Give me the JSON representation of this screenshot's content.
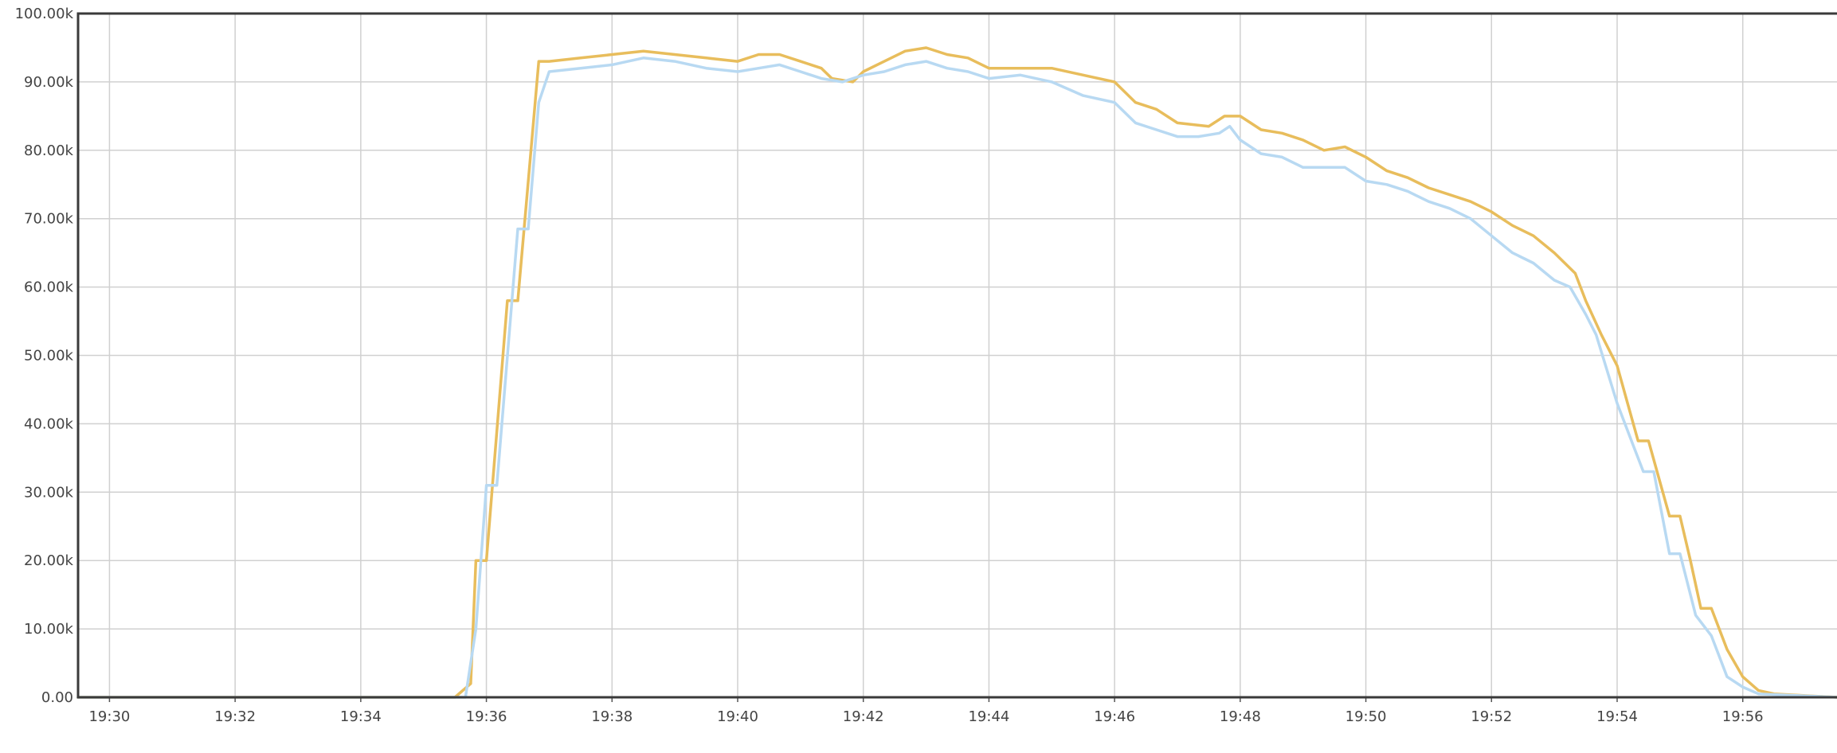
{
  "chart_data": {
    "type": "line",
    "title": "",
    "xlabel": "",
    "ylabel": "",
    "xlim": [
      "19:29:30",
      "19:57:30"
    ],
    "ylim": [
      0,
      100000
    ],
    "grid": true,
    "legend": "none",
    "x_ticks": [
      "19:30",
      "19:32",
      "19:34",
      "19:36",
      "19:38",
      "19:40",
      "19:42",
      "19:44",
      "19:46",
      "19:48",
      "19:50",
      "19:52",
      "19:54",
      "19:56"
    ],
    "y_ticks": [
      "0.00",
      "10.00k",
      "20.00k",
      "30.00k",
      "40.00k",
      "50.00k",
      "60.00k",
      "70.00k",
      "80.00k",
      "90.00k",
      "100.00k"
    ],
    "series": [
      {
        "color": "#e8bd5c",
        "points": [
          [
            "19:29:30",
            0
          ],
          [
            "19:35:30",
            0
          ],
          [
            "19:35:45",
            2000
          ],
          [
            "19:35:50",
            20000
          ],
          [
            "19:36:00",
            20000
          ],
          [
            "19:36:20",
            58000
          ],
          [
            "19:36:30",
            58000
          ],
          [
            "19:36:50",
            93000
          ],
          [
            "19:37:00",
            93000
          ],
          [
            "19:37:30",
            93500
          ],
          [
            "19:38:00",
            94000
          ],
          [
            "19:38:30",
            94500
          ],
          [
            "19:39:00",
            94000
          ],
          [
            "19:39:30",
            93500
          ],
          [
            "19:40:00",
            93000
          ],
          [
            "19:40:20",
            94000
          ],
          [
            "19:40:40",
            94000
          ],
          [
            "19:41:00",
            93000
          ],
          [
            "19:41:20",
            92000
          ],
          [
            "19:41:30",
            90500
          ],
          [
            "19:41:50",
            90000
          ],
          [
            "19:42:00",
            91500
          ],
          [
            "19:42:20",
            93000
          ],
          [
            "19:42:40",
            94500
          ],
          [
            "19:43:00",
            95000
          ],
          [
            "19:43:20",
            94000
          ],
          [
            "19:43:40",
            93500
          ],
          [
            "19:44:00",
            92000
          ],
          [
            "19:44:30",
            92000
          ],
          [
            "19:45:00",
            92000
          ],
          [
            "19:45:30",
            91000
          ],
          [
            "19:46:00",
            90000
          ],
          [
            "19:46:20",
            87000
          ],
          [
            "19:46:40",
            86000
          ],
          [
            "19:47:00",
            84000
          ],
          [
            "19:47:30",
            83500
          ],
          [
            "19:47:45",
            85000
          ],
          [
            "19:48:00",
            85000
          ],
          [
            "19:48:20",
            83000
          ],
          [
            "19:48:40",
            82500
          ],
          [
            "19:49:00",
            81500
          ],
          [
            "19:49:20",
            80000
          ],
          [
            "19:49:40",
            80500
          ],
          [
            "19:50:00",
            79000
          ],
          [
            "19:50:20",
            77000
          ],
          [
            "19:50:40",
            76000
          ],
          [
            "19:51:00",
            74500
          ],
          [
            "19:51:20",
            73500
          ],
          [
            "19:51:40",
            72500
          ],
          [
            "19:52:00",
            71000
          ],
          [
            "19:52:20",
            69000
          ],
          [
            "19:52:40",
            67500
          ],
          [
            "19:53:00",
            65000
          ],
          [
            "19:53:20",
            62000
          ],
          [
            "19:53:30",
            58000
          ],
          [
            "19:53:45",
            53000
          ],
          [
            "19:54:00",
            48500
          ],
          [
            "19:54:10",
            43000
          ],
          [
            "19:54:20",
            37500
          ],
          [
            "19:54:30",
            37500
          ],
          [
            "19:54:50",
            26500
          ],
          [
            "19:55:00",
            26500
          ],
          [
            "19:55:10",
            20000
          ],
          [
            "19:55:20",
            13000
          ],
          [
            "19:55:30",
            13000
          ],
          [
            "19:55:45",
            7000
          ],
          [
            "19:56:00",
            3000
          ],
          [
            "19:56:15",
            1000
          ],
          [
            "19:56:30",
            500
          ],
          [
            "19:57:30",
            0
          ]
        ]
      },
      {
        "color": "#b8d9f2",
        "points": [
          [
            "19:29:30",
            0
          ],
          [
            "19:35:40",
            0
          ],
          [
            "19:35:50",
            10000
          ],
          [
            "19:36:00",
            31000
          ],
          [
            "19:36:10",
            31000
          ],
          [
            "19:36:30",
            68500
          ],
          [
            "19:36:40",
            68500
          ],
          [
            "19:36:50",
            87000
          ],
          [
            "19:37:00",
            91500
          ],
          [
            "19:37:30",
            92000
          ],
          [
            "19:38:00",
            92500
          ],
          [
            "19:38:30",
            93500
          ],
          [
            "19:39:00",
            93000
          ],
          [
            "19:39:30",
            92000
          ],
          [
            "19:40:00",
            91500
          ],
          [
            "19:40:20",
            92000
          ],
          [
            "19:40:40",
            92500
          ],
          [
            "19:41:00",
            91500
          ],
          [
            "19:41:20",
            90500
          ],
          [
            "19:41:40",
            90000
          ],
          [
            "19:42:00",
            91000
          ],
          [
            "19:42:20",
            91500
          ],
          [
            "19:42:40",
            92500
          ],
          [
            "19:43:00",
            93000
          ],
          [
            "19:43:20",
            92000
          ],
          [
            "19:43:40",
            91500
          ],
          [
            "19:44:00",
            90500
          ],
          [
            "19:44:30",
            91000
          ],
          [
            "19:45:00",
            90000
          ],
          [
            "19:45:30",
            88000
          ],
          [
            "19:46:00",
            87000
          ],
          [
            "19:46:20",
            84000
          ],
          [
            "19:46:40",
            83000
          ],
          [
            "19:47:00",
            82000
          ],
          [
            "19:47:20",
            82000
          ],
          [
            "19:47:40",
            82500
          ],
          [
            "19:47:50",
            83500
          ],
          [
            "19:48:00",
            81500
          ],
          [
            "19:48:20",
            79500
          ],
          [
            "19:48:40",
            79000
          ],
          [
            "19:49:00",
            77500
          ],
          [
            "19:49:20",
            77500
          ],
          [
            "19:49:40",
            77500
          ],
          [
            "19:50:00",
            75500
          ],
          [
            "19:50:20",
            75000
          ],
          [
            "19:50:40",
            74000
          ],
          [
            "19:51:00",
            72500
          ],
          [
            "19:51:20",
            71500
          ],
          [
            "19:51:40",
            70000
          ],
          [
            "19:52:00",
            67500
          ],
          [
            "19:52:20",
            65000
          ],
          [
            "19:52:40",
            63500
          ],
          [
            "19:53:00",
            61000
          ],
          [
            "19:53:15",
            60000
          ],
          [
            "19:53:30",
            56000
          ],
          [
            "19:53:40",
            53000
          ],
          [
            "19:54:00",
            43000
          ],
          [
            "19:54:15",
            37000
          ],
          [
            "19:54:25",
            33000
          ],
          [
            "19:54:35",
            33000
          ],
          [
            "19:54:50",
            21000
          ],
          [
            "19:55:00",
            21000
          ],
          [
            "19:55:15",
            12000
          ],
          [
            "19:55:30",
            9000
          ],
          [
            "19:55:45",
            3000
          ],
          [
            "19:56:00",
            1500
          ],
          [
            "19:56:15",
            500
          ],
          [
            "19:57:30",
            0
          ]
        ]
      }
    ]
  }
}
